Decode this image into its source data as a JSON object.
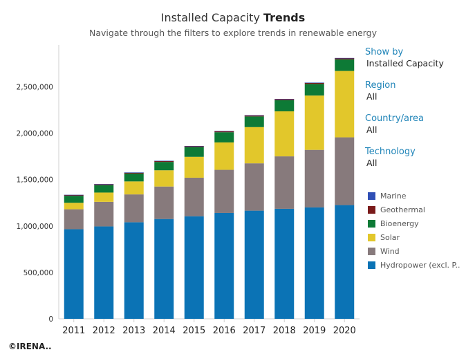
{
  "header": {
    "title_main": "Installed Capacity",
    "title_bold": "Trends",
    "subtitle": "Navigate through the filters to explore trends in renewable energy"
  },
  "filters": [
    {
      "label": "Show by",
      "value": "Installed Capacity"
    },
    {
      "label": "Region",
      "value": "All"
    },
    {
      "label": "Country/area",
      "value": "All"
    },
    {
      "label": "Technology",
      "value": "All"
    }
  ],
  "legend": [
    {
      "label": "Marine",
      "color": "#2f4fb5"
    },
    {
      "label": "Geothermal",
      "color": "#7a1a1a"
    },
    {
      "label": "Bioenergy",
      "color": "#0d7a36"
    },
    {
      "label": "Solar",
      "color": "#e2c72b"
    },
    {
      "label": "Wind",
      "color": "#877a7c"
    },
    {
      "label": "Hydropower (excl. P..",
      "color": "#0b73b5"
    }
  ],
  "footer": {
    "copyright": "©IRENA.."
  },
  "chart_data": {
    "type": "bar",
    "stacked": true,
    "categories": [
      "2011",
      "2012",
      "2013",
      "2014",
      "2015",
      "2016",
      "2017",
      "2018",
      "2019",
      "2020"
    ],
    "series": [
      {
        "name": "Hydropower (excl. P..",
        "color": "#0b73b5",
        "values": [
          965000,
          995000,
          1040000,
          1075000,
          1105000,
          1140000,
          1165000,
          1185000,
          1200000,
          1225000
        ]
      },
      {
        "name": "Wind",
        "color": "#877a7c",
        "values": [
          215000,
          265000,
          300000,
          350000,
          415000,
          465000,
          510000,
          565000,
          620000,
          730000
        ]
      },
      {
        "name": "Solar",
        "color": "#e2c72b",
        "values": [
          70000,
          100000,
          140000,
          175000,
          225000,
          295000,
          390000,
          485000,
          585000,
          715000
        ]
      },
      {
        "name": "Bioenergy",
        "color": "#0d7a36",
        "values": [
          75000,
          80000,
          85000,
          90000,
          105000,
          110000,
          115000,
          120000,
          125000,
          125000
        ]
      },
      {
        "name": "Geothermal",
        "color": "#7a1a1a",
        "values": [
          10000,
          11000,
          11000,
          12000,
          12000,
          13000,
          13000,
          13000,
          14000,
          14000
        ]
      },
      {
        "name": "Marine",
        "color": "#2f4fb5",
        "values": [
          500,
          500,
          500,
          500,
          500,
          500,
          500,
          500,
          500,
          500
        ]
      }
    ],
    "yticks": [
      "0",
      "500,000",
      "1,000,000",
      "1,500,000",
      "2,000,000",
      "2,500,000"
    ],
    "ytick_values": [
      0,
      500000,
      1000000,
      1500000,
      2000000,
      2500000
    ],
    "ylim": [
      0,
      2950000
    ],
    "grid": false,
    "legend_position": "right"
  }
}
